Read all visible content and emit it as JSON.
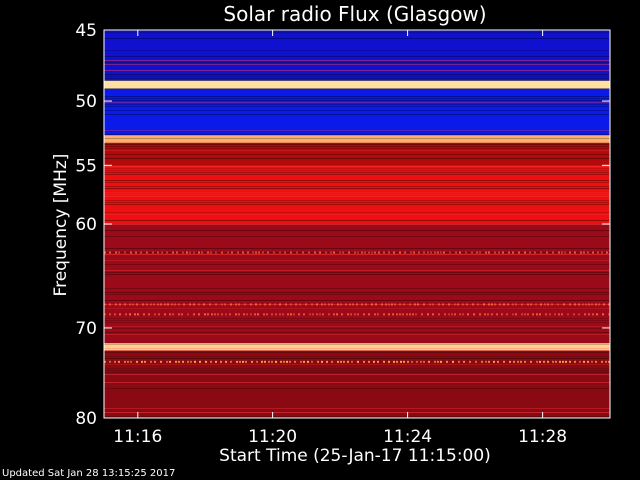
{
  "chart_data": {
    "type": "heatmap",
    "title": "Solar radio Flux (Glasgow)",
    "xlabel": "Start Time (25-Jan-17 11:15:00)",
    "ylabel": "Frequency [MHz]",
    "xlim_minutes": [
      11.25,
      11.5
    ],
    "ylim_mhz": [
      45,
      80
    ],
    "x_ticks": [
      {
        "label": "11:16",
        "value": 11.2667
      },
      {
        "label": "11:20",
        "value": 11.3333
      },
      {
        "label": "11:24",
        "value": 11.4
      },
      {
        "label": "11:28",
        "value": 11.4667
      }
    ],
    "y_ticks": [
      {
        "label": "45",
        "value": 45
      },
      {
        "label": "50",
        "value": 50
      },
      {
        "label": "55",
        "value": 55
      },
      {
        "label": "60",
        "value": 60
      },
      {
        "label": "70",
        "value": 70
      },
      {
        "label": "80",
        "value": 80
      }
    ],
    "y_scale": "log",
    "colormap": [
      "#000080",
      "#0000ff",
      "#800000",
      "#ff0000",
      "#ffff80"
    ],
    "bands": [
      {
        "from": 45,
        "to": 48.5,
        "color": "#1010d0"
      },
      {
        "from": 48.5,
        "to": 49.1,
        "color": "#ffe0a0"
      },
      {
        "from": 49.1,
        "to": 52.6,
        "color": "#0a1ae8"
      },
      {
        "from": 52.6,
        "to": 53.2,
        "color": "#ffb070"
      },
      {
        "from": 53.2,
        "to": 55,
        "color": "#b00a0a"
      },
      {
        "from": 55,
        "to": 60,
        "color": "#ee1010"
      },
      {
        "from": 60,
        "to": 71.6,
        "color": "#9a0a18"
      },
      {
        "from": 71.6,
        "to": 72.4,
        "color": "#ffd090"
      },
      {
        "from": 72.4,
        "to": 80,
        "color": "#8a0a14"
      }
    ]
  },
  "footer": {
    "updated": "Updated Sat Jan 28 13:15:25 2017"
  }
}
